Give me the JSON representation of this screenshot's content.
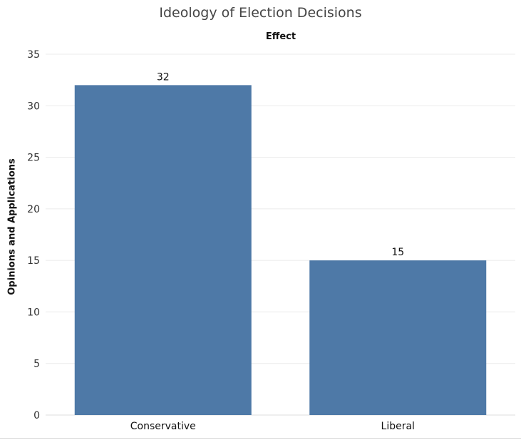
{
  "chart_data": {
    "type": "bar",
    "title": "Ideology of Election Decisions",
    "subtitle": "Effect",
    "xlabel": "",
    "ylabel": "Opinions and Applications",
    "categories": [
      "Conservative",
      "Liberal"
    ],
    "values": [
      32,
      15
    ],
    "data_labels": [
      "32",
      "15"
    ],
    "ylim": [
      0,
      35
    ],
    "yticks": [
      "0",
      "5",
      "10",
      "15",
      "20",
      "25",
      "30",
      "35"
    ],
    "grid": true,
    "legend": "none"
  },
  "colors": {
    "bar": "#4e79a7",
    "grid": "#ebebeb",
    "text": "#333333",
    "title": "#444444"
  }
}
